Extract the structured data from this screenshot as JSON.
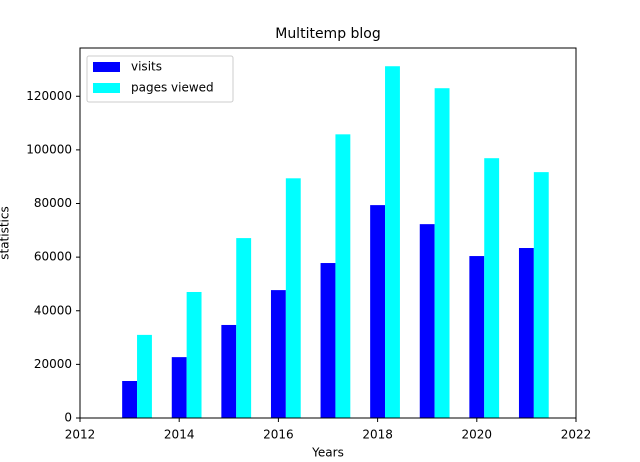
{
  "chart_data": {
    "type": "bar",
    "title": "Multitemp blog",
    "x_label": "Years",
    "y_label": "statistics",
    "x": [
      2013,
      2014,
      2015,
      2016,
      2017,
      2018,
      2019,
      2020,
      2021
    ],
    "series": [
      {
        "name": "visits",
        "color": "#0000ff",
        "values": [
          13800,
          22700,
          34700,
          47700,
          57800,
          79400,
          72300,
          60400,
          63400
        ]
      },
      {
        "name": "pages viewed",
        "color": "#00ffff",
        "values": [
          31000,
          47000,
          67100,
          89400,
          105800,
          131200,
          123000,
          96900,
          91700
        ]
      }
    ],
    "xlim": [
      2012,
      2022
    ],
    "xticks": [
      2012,
      2014,
      2016,
      2018,
      2020,
      2022
    ],
    "ylim": [
      0,
      138000
    ],
    "yticks": [
      0,
      20000,
      40000,
      60000,
      80000,
      100000,
      120000
    ],
    "grid": false,
    "legend": "upper-left"
  }
}
